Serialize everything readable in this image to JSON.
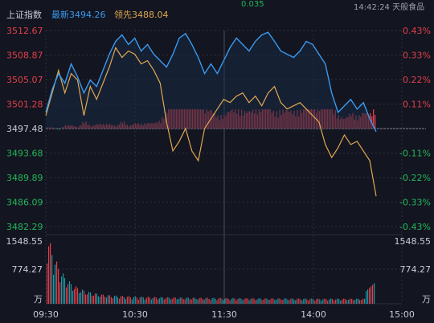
{
  "header": {
    "index_name": "上证指数",
    "latest_label": "最新",
    "latest_value": "3494.26",
    "lead_label": "领先",
    "lead_value": "3488.04",
    "top_partial_value": "0.035",
    "time_partial": "14:42:24",
    "partial_text": "天般食品"
  },
  "colors": {
    "up": "#e0404a",
    "down": "#22b85a",
    "price_line": "#3a9aee",
    "lead_line": "#e0a850",
    "grid": "#2c3040",
    "neutral": "#c8ccd6",
    "latest": "#3a9aee",
    "lead": "#e0a850"
  },
  "chart_data": {
    "type": "line",
    "x_ticks": [
      "09:30",
      "10:30",
      "11:30",
      "14:00",
      "15:00"
    ],
    "y_left_ticks": [
      "3512.67",
      "3508.87",
      "3505.07",
      "3501.28",
      "3497.48",
      "3493.68",
      "3489.89",
      "3486.09",
      "3482.29"
    ],
    "y_right_ticks": [
      "0.43%",
      "0.33%",
      "0.22%",
      "0.11%",
      "",
      "-0.11%",
      "-0.22%",
      "-0.33%",
      "-0.43%"
    ],
    "ylim": [
      3482.29,
      3512.67
    ],
    "prev_close": 3497.48,
    "volume_ticks": [
      "1548.55",
      "774.27",
      "万"
    ],
    "volume_ylim": [
      0,
      1548.55
    ],
    "series": [
      {
        "name": "最新",
        "color": "#3a9aee",
        "values": [
          3500.0,
          3503.5,
          3506.0,
          3504.5,
          3507.5,
          3505.5,
          3503.0,
          3505.0,
          3504.0,
          3506.5,
          3509.0,
          3511.0,
          3512.0,
          3510.5,
          3511.5,
          3509.5,
          3510.5,
          3509.0,
          3508.0,
          3507.0,
          3509.0,
          3511.5,
          3512.2,
          3510.5,
          3508.5,
          3506.0,
          3507.5,
          3506.0,
          3508.0,
          3510.0,
          3511.5,
          3510.5,
          3509.5,
          3511.0,
          3512.0,
          3512.4,
          3511.0,
          3509.5,
          3509.0,
          3508.5,
          3509.5,
          3511.0,
          3510.5,
          3509.0,
          3507.5,
          3503.0,
          3500.0,
          3501.0,
          3502.0,
          3500.5,
          3501.5,
          3499.0,
          3497.0
        ]
      },
      {
        "name": "领先",
        "color": "#e0a850",
        "values": [
          3499.5,
          3503.0,
          3506.5,
          3503.0,
          3506.0,
          3505.0,
          3499.5,
          3504.0,
          3502.0,
          3504.5,
          3507.0,
          3510.0,
          3508.5,
          3509.5,
          3509.0,
          3507.5,
          3508.0,
          3506.5,
          3504.5,
          3498.5,
          3494.0,
          3495.5,
          3497.5,
          3494.0,
          3492.5,
          3497.5,
          3499.0,
          3500.5,
          3502.0,
          3501.5,
          3502.5,
          3503.0,
          3501.5,
          3502.5,
          3501.0,
          3503.0,
          3504.0,
          3501.5,
          3500.5,
          3501.0,
          3501.5,
          3500.5,
          3499.5,
          3498.5,
          3495.0,
          3493.0,
          3494.5,
          3496.5,
          3495.0,
          3495.5,
          3494.0,
          3492.5,
          3487.0
        ]
      }
    ]
  }
}
